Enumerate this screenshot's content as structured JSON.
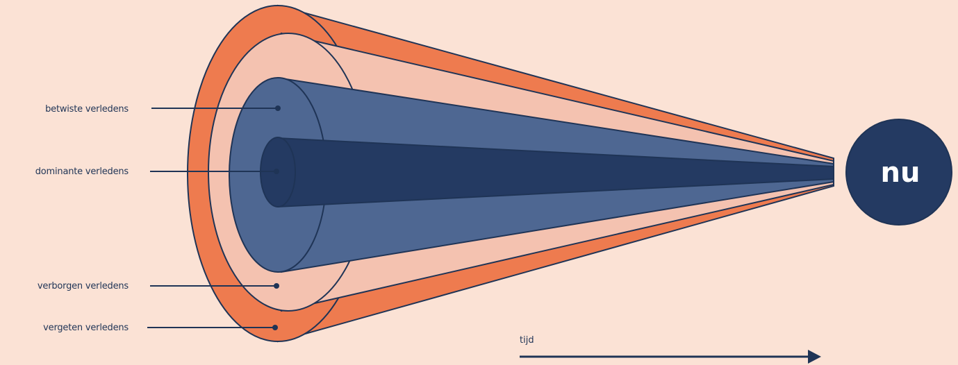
{
  "labels": {
    "betwiste": "betwiste verledens",
    "dominante": "dominante verledens",
    "verborgen": "verborgen verledens",
    "vergeten": "vergeten verledens"
  },
  "now_label": "nu",
  "time_label": "tijd",
  "colors": {
    "background": "#fbe2d5",
    "outer_orange": "#ee7b4f",
    "light_pink": "#f4c2b0",
    "mid_blue": "#4e6792",
    "dark_navy": "#243a62",
    "line": "#1f3456"
  }
}
